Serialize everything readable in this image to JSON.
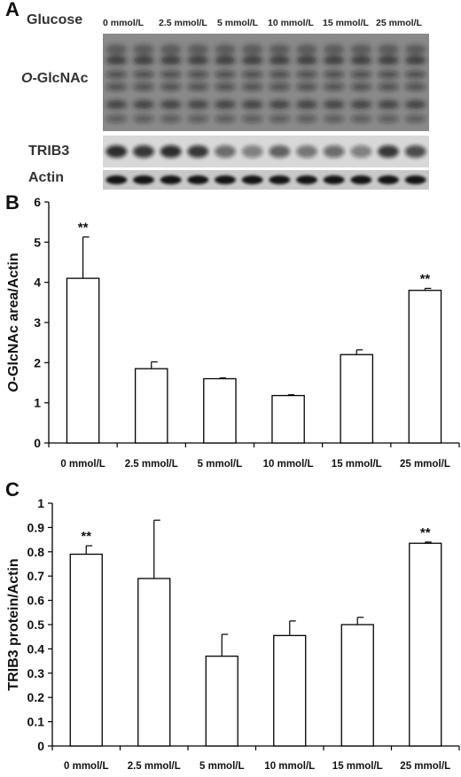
{
  "panel_a": {
    "letter": "A",
    "label_glucose": "Glucose",
    "label_oglcnac_prefix": "O",
    "label_oglcnac_suffix": "-GlcNAc",
    "label_trib3": "TRIB3",
    "label_actin": "Actin",
    "lanes": [
      "0 mmol/L",
      "2.5 mmol/L",
      "5 mmol/L",
      "10 mmol/L",
      "15 mmol/L",
      "25 mmol/L"
    ],
    "lanes_per_group": 2
  },
  "panel_b": {
    "letter": "B",
    "ylabel_prefix": "O",
    "ylabel_suffix": "-GlcNAc area/Actin"
  },
  "panel_c": {
    "letter": "C",
    "ylabel": "TRIB3 protein/Actin"
  },
  "chart_data": [
    {
      "type": "bar",
      "panel": "B",
      "categories": [
        "0 mmol/L",
        "2.5 mmol/L",
        "5 mmol/L",
        "10 mmol/L",
        "15 mmol/L",
        "25 mmol/L"
      ],
      "values": [
        4.1,
        1.85,
        1.6,
        1.18,
        2.2,
        3.8
      ],
      "errors": [
        1.03,
        0.17,
        0.02,
        0.02,
        0.12,
        0.05
      ],
      "annotations": [
        "**",
        "",
        "",
        "",
        "",
        "**"
      ],
      "ylim": [
        0,
        6
      ],
      "yticks": [
        0,
        1,
        2,
        3,
        4,
        5,
        6
      ],
      "ytick_labels": [
        "0",
        "1",
        "2",
        "3",
        "4",
        "5",
        "6"
      ],
      "bar_fill": "#ffffff",
      "bar_stroke": "#000000"
    },
    {
      "type": "bar",
      "panel": "C",
      "categories": [
        "0 mmol/L",
        "2.5 mmol/L",
        "5 mmol/L",
        "10 mmol/L",
        "15 mmol/L",
        "25 mmol/L"
      ],
      "values": [
        0.79,
        0.69,
        0.37,
        0.455,
        0.5,
        0.835
      ],
      "errors": [
        0.035,
        0.24,
        0.09,
        0.06,
        0.03,
        0.005
      ],
      "annotations": [
        "**",
        "",
        "",
        "",
        "",
        "**"
      ],
      "ylim": [
        0,
        1
      ],
      "yticks": [
        0,
        0.1,
        0.2,
        0.3,
        0.4,
        0.5,
        0.6,
        0.7,
        0.8,
        0.9,
        1
      ],
      "ytick_labels": [
        "0",
        "0.1",
        "0.2",
        "0.3",
        "0.4",
        "0.5",
        "0.6",
        "0.7",
        "0.8",
        "0.9",
        "1"
      ],
      "bar_fill": "#ffffff",
      "bar_stroke": "#000000"
    }
  ]
}
